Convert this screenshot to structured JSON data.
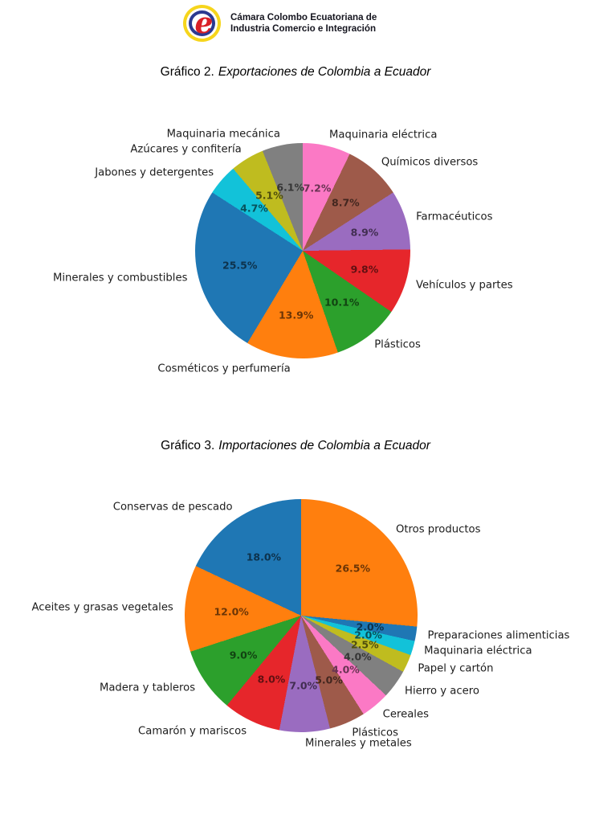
{
  "header": {
    "logo_letter": "e",
    "logo_text_line1": "Cámara Colombo Ecuatoriana de",
    "logo_text_line2": "Industria Comercio e Integración",
    "logo_colors": {
      "yellow": "#f6d51c",
      "blue": "#2b3990",
      "red": "#d91f26"
    }
  },
  "chart_data": [
    {
      "type": "pie",
      "title_prefix": "Gráfico 2.",
      "title_italic": "Exportaciones de Colombia a Ecuador",
      "title": "Gráfico 2. Exportaciones de Colombia a Ecuador",
      "start_angle": "top",
      "direction": "clockwise",
      "legend": "none",
      "slices": [
        {
          "label": "Maquinaria eléctrica",
          "value": 7.2,
          "pct": "7.2%",
          "color": "#fb79c5"
        },
        {
          "label": "Químicos diversos",
          "value": 8.7,
          "pct": "8.7%",
          "color": "#9e5a4a"
        },
        {
          "label": "Farmacéuticos",
          "value": 8.9,
          "pct": "8.9%",
          "color": "#9a6cc0"
        },
        {
          "label": "Vehículos y partes",
          "value": 9.8,
          "pct": "9.8%",
          "color": "#e6262b"
        },
        {
          "label": "Plásticos",
          "value": 10.1,
          "pct": "10.1%",
          "color": "#2ca02c"
        },
        {
          "label": "Cosméticos y perfumería",
          "value": 13.9,
          "pct": "13.9%",
          "color": "#ff7f0e"
        },
        {
          "label": "Minerales y combustibles",
          "value": 25.5,
          "pct": "25.5%",
          "color": "#1f77b4"
        },
        {
          "label": "Jabones y detergentes",
          "value": 4.7,
          "pct": "4.7%",
          "color": "#12c2d9"
        },
        {
          "label": "Azúcares y confitería",
          "value": 5.1,
          "pct": "5.1%",
          "color": "#bfbc1f"
        },
        {
          "label": "Maquinaria mecánica",
          "value": 6.1,
          "pct": "6.1%",
          "color": "#808080"
        }
      ]
    },
    {
      "type": "pie",
      "title_prefix": "Gráfico 3.",
      "title_italic": "Importaciones de Colombia a Ecuador",
      "title": "Gráfico 3. Importaciones de Colombia a Ecuador",
      "start_angle": "top",
      "direction": "clockwise",
      "legend": "none",
      "slices": [
        {
          "label": "Otros productos",
          "value": 26.5,
          "pct": "26.5%",
          "color": "#ff7f0e"
        },
        {
          "label": "Preparaciones alimenticias",
          "value": 2.0,
          "pct": "2.0%",
          "color": "#1f77b4"
        },
        {
          "label": "Maquinaria eléctrica",
          "value": 2.0,
          "pct": "2.0%",
          "color": "#12c2d9"
        },
        {
          "label": "Papel y cartón",
          "value": 2.5,
          "pct": "2.5%",
          "color": "#bfbc1f"
        },
        {
          "label": "Hierro y acero",
          "value": 4.0,
          "pct": "4.0%",
          "color": "#808080"
        },
        {
          "label": "Cereales",
          "value": 4.0,
          "pct": "4.0%",
          "color": "#fb79c5"
        },
        {
          "label": "Plásticos",
          "value": 5.0,
          "pct": "5.0%",
          "color": "#9e5a4a"
        },
        {
          "label": "Minerales y metales",
          "value": 7.0,
          "pct": "7.0%",
          "color": "#9a6cc0"
        },
        {
          "label": "Camarón y mariscos",
          "value": 8.0,
          "pct": "8.0%",
          "color": "#e6262b"
        },
        {
          "label": "Madera y tableros",
          "value": 9.0,
          "pct": "9.0%",
          "color": "#2ca02c"
        },
        {
          "label": "Aceites y grasas vegetales",
          "value": 12.0,
          "pct": "12.0%",
          "color": "#ff7f0e"
        },
        {
          "label": "Conservas de pescado",
          "value": 18.0,
          "pct": "18.0%",
          "color": "#1f77b4"
        }
      ]
    }
  ]
}
